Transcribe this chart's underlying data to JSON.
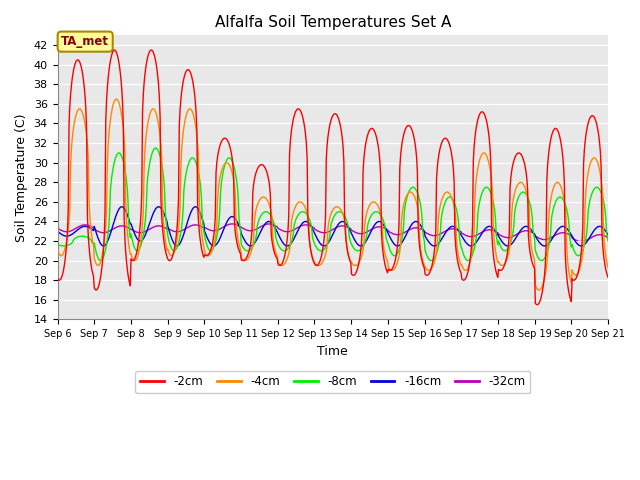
{
  "title": "Alfalfa Soil Temperatures Set A",
  "xlabel": "Time",
  "ylabel": "Soil Temperature (C)",
  "ylim": [
    14,
    43
  ],
  "yticks": [
    14,
    16,
    18,
    20,
    22,
    24,
    26,
    28,
    30,
    32,
    34,
    36,
    38,
    40,
    42
  ],
  "annotation_text": "TA_met",
  "annotation_color": "#880000",
  "annotation_bg": "#ffff99",
  "annotation_border": "#aa8800",
  "colors": {
    "-2cm": "#ff0000",
    "-4cm": "#ff8800",
    "-8cm": "#00ee00",
    "-16cm": "#0000dd",
    "-32cm": "#bb00bb"
  },
  "legend_labels": [
    "-2cm",
    "-4cm",
    "-8cm",
    "-16cm",
    "-32cm"
  ],
  "plot_bg": "#e8e8e8",
  "fig_bg": "#ffffff",
  "n_days": 15,
  "start_day": 6
}
